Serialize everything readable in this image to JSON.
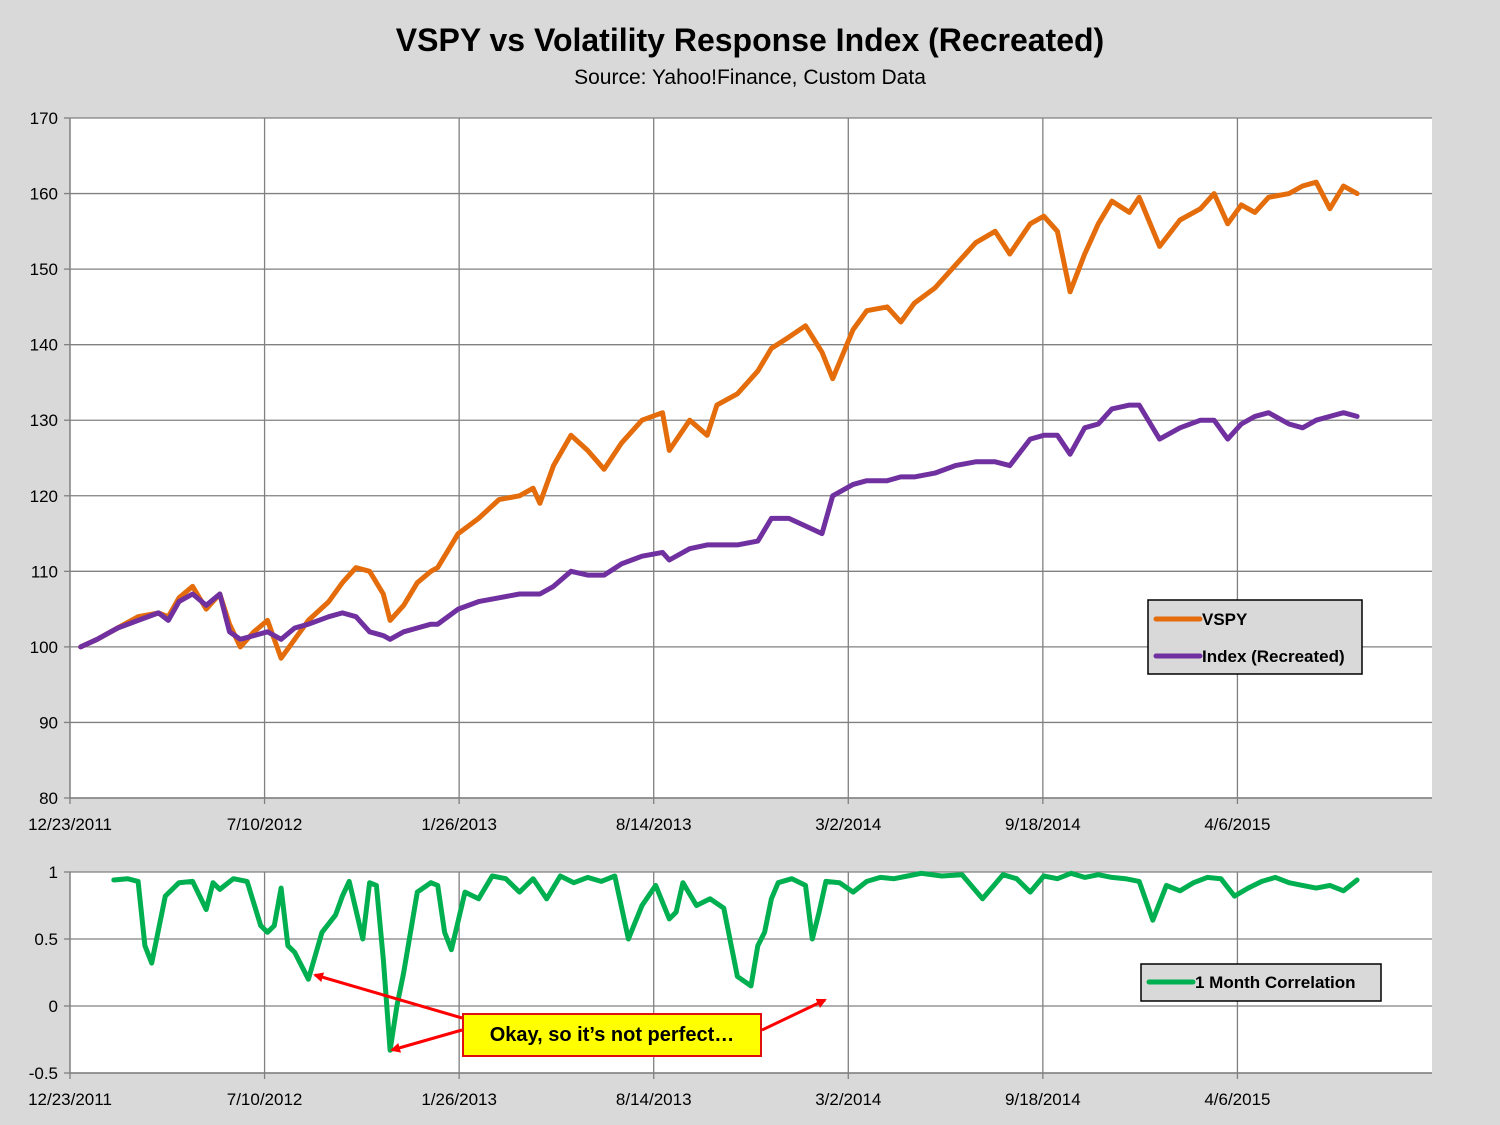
{
  "title": "VSPY vs Volatility Response Index (Recreated)",
  "subtitle": "Source: Yahoo!Finance, Custom Data",
  "colors": {
    "vspy": "#e46c0a",
    "index": "#7030a0",
    "correlation": "#00b050",
    "annotation_arrow": "#ff0000",
    "callout_fill": "#ffff00",
    "background": "#d9d9d9",
    "plot_background": "#ffffff",
    "grid": "#808080"
  },
  "annotation": {
    "text": "Okay, so it’s not perfect…"
  },
  "chart_data": [
    {
      "type": "line",
      "grid": true,
      "legend_placement": "right-middle",
      "x_ticks": [
        "12/23/2011",
        "7/10/2012",
        "1/26/2013",
        "8/14/2013",
        "3/2/2014",
        "9/18/2014",
        "4/6/2015"
      ],
      "xlim": [
        "12/23/2011",
        "10/23/2015"
      ],
      "ylim": [
        80,
        170
      ],
      "y_ticks": [
        80,
        90,
        100,
        110,
        120,
        130,
        140,
        150,
        160,
        170
      ],
      "series": [
        {
          "name": "VSPY",
          "color": "#e46c0a",
          "x": [
            "1/3/2012",
            "1/20/2012",
            "2/10/2012",
            "3/2/2012",
            "3/23/2012",
            "4/2/2012",
            "4/13/2012",
            "4/27/2012",
            "5/11/2012",
            "5/25/2012",
            "6/4/2012",
            "6/15/2012",
            "6/29/2012",
            "7/13/2012",
            "7/27/2012",
            "8/10/2012",
            "8/24/2012",
            "9/14/2012",
            "9/28/2012",
            "10/12/2012",
            "10/26/2012",
            "11/9/2012",
            "11/16/2012",
            "11/30/2012",
            "12/14/2012",
            "12/28/2012",
            "1/4/2013",
            "1/25/2013",
            "2/15/2013",
            "3/8/2013",
            "3/29/2013",
            "4/12/2013",
            "4/19/2013",
            "5/3/2013",
            "5/21/2013",
            "6/7/2013",
            "6/24/2013",
            "7/12/2013",
            "8/2/2013",
            "8/23/2013",
            "8/30/2013",
            "9/20/2013",
            "10/8/2013",
            "10/18/2013",
            "11/8/2013",
            "11/29/2013",
            "12/13/2013",
            "12/31/2013",
            "1/17/2014",
            "2/3/2014",
            "2/14/2014",
            "3/7/2014",
            "3/21/2014",
            "4/11/2014",
            "4/25/2014",
            "5/9/2014",
            "5/30/2014",
            "6/20/2014",
            "7/11/2014",
            "7/31/2014",
            "8/15/2014",
            "9/5/2014",
            "9/19/2014",
            "10/3/2014",
            "10/16/2014",
            "10/31/2014",
            "11/14/2014",
            "11/28/2014",
            "12/16/2014",
            "12/26/2014",
            "1/16/2015",
            "2/6/2015",
            "2/27/2015",
            "3/13/2015",
            "3/27/2015",
            "4/10/2015",
            "4/24/2015",
            "5/8/2015",
            "5/29/2015",
            "6/12/2015",
            "6/26/2015",
            "7/10/2015",
            "7/24/2015",
            "8/7/2015"
          ],
          "y": [
            100,
            101,
            102.5,
            104,
            104.5,
            104,
            106.5,
            108,
            105,
            107,
            103,
            100,
            102,
            103.5,
            98.5,
            101,
            103.5,
            106,
            108.5,
            110.5,
            110,
            107,
            103.5,
            105.5,
            108.5,
            110,
            110.5,
            115,
            117,
            119.5,
            120,
            121,
            119,
            124,
            128,
            126,
            123.5,
            127,
            130,
            131,
            126,
            130,
            128,
            132,
            133.5,
            136.5,
            139.5,
            141,
            142.5,
            139,
            135.5,
            142,
            144.5,
            145,
            143,
            145.5,
            147.5,
            150.5,
            153.5,
            155,
            152,
            156,
            157,
            155,
            147,
            152,
            156,
            159,
            157.5,
            159.5,
            153,
            156.5,
            158,
            160,
            156,
            158.5,
            157.5,
            159.5,
            160,
            161,
            161.5,
            158,
            161,
            160
          ]
        },
        {
          "name": "Index (Recreated)",
          "color": "#7030a0",
          "x": [
            "1/3/2012",
            "1/20/2012",
            "2/10/2012",
            "3/2/2012",
            "3/23/2012",
            "4/2/2012",
            "4/13/2012",
            "4/27/2012",
            "5/11/2012",
            "5/25/2012",
            "6/4/2012",
            "6/15/2012",
            "6/29/2012",
            "7/13/2012",
            "7/27/2012",
            "8/10/2012",
            "8/24/2012",
            "9/14/2012",
            "9/28/2012",
            "10/12/2012",
            "10/26/2012",
            "11/9/2012",
            "11/16/2012",
            "11/30/2012",
            "12/14/2012",
            "12/28/2012",
            "1/4/2013",
            "1/25/2013",
            "2/15/2013",
            "3/8/2013",
            "3/29/2013",
            "4/12/2013",
            "4/19/2013",
            "5/3/2013",
            "5/21/2013",
            "6/7/2013",
            "6/24/2013",
            "7/12/2013",
            "8/2/2013",
            "8/23/2013",
            "8/30/2013",
            "9/20/2013",
            "10/8/2013",
            "10/18/2013",
            "11/8/2013",
            "11/29/2013",
            "12/13/2013",
            "12/31/2013",
            "1/17/2014",
            "2/3/2014",
            "2/14/2014",
            "3/7/2014",
            "3/21/2014",
            "4/11/2014",
            "4/25/2014",
            "5/9/2014",
            "5/30/2014",
            "6/20/2014",
            "7/11/2014",
            "7/31/2014",
            "8/15/2014",
            "9/5/2014",
            "9/19/2014",
            "10/3/2014",
            "10/16/2014",
            "10/31/2014",
            "11/14/2014",
            "11/28/2014",
            "12/16/2014",
            "12/26/2014",
            "1/16/2015",
            "2/6/2015",
            "2/27/2015",
            "3/13/2015",
            "3/27/2015",
            "4/10/2015",
            "4/24/2015",
            "5/8/2015",
            "5/29/2015",
            "6/12/2015",
            "6/26/2015",
            "7/10/2015",
            "7/24/2015",
            "8/7/2015"
          ],
          "y": [
            100,
            101,
            102.5,
            103.5,
            104.5,
            103.5,
            106,
            107,
            105.5,
            107,
            102,
            101,
            101.5,
            102,
            101,
            102.5,
            103,
            104,
            104.5,
            104,
            102,
            101.5,
            101,
            102,
            102.5,
            103,
            103,
            105,
            106,
            106.5,
            107,
            107,
            107,
            108,
            110,
            109.5,
            109.5,
            111,
            112,
            112.5,
            111.5,
            113,
            113.5,
            113.5,
            113.5,
            114,
            117,
            117,
            116,
            115,
            120,
            121.5,
            122,
            122,
            122.5,
            122.5,
            123,
            124,
            124.5,
            124.5,
            124,
            127.5,
            128,
            128,
            125.5,
            129,
            129.5,
            131.5,
            132,
            132,
            127.5,
            129,
            130,
            130,
            127.5,
            129.5,
            130.5,
            131,
            129.5,
            129,
            130,
            130.5,
            131,
            130.5
          ]
        }
      ]
    },
    {
      "type": "line",
      "grid": true,
      "legend_placement": "right-middle",
      "x_ticks": [
        "12/23/2011",
        "7/10/2012",
        "1/26/2013",
        "8/14/2013",
        "3/2/2014",
        "9/18/2014",
        "4/6/2015"
      ],
      "xlim": [
        "12/23/2011",
        "10/23/2015"
      ],
      "ylim": [
        -0.5,
        1
      ],
      "y_ticks": [
        -0.5,
        0,
        0.5,
        1
      ],
      "series": [
        {
          "name": "1 Month Correlation",
          "color": "#00b050",
          "x": [
            "2/6/2012",
            "2/20/2012",
            "3/2/2012",
            "3/9/2012",
            "3/16/2012",
            "3/30/2012",
            "4/13/2012",
            "4/27/2012",
            "5/11/2012",
            "5/18/2012",
            "5/25/2012",
            "6/8/2012",
            "6/22/2012",
            "7/6/2012",
            "7/13/2012",
            "7/20/2012",
            "7/27/2012",
            "8/3/2012",
            "8/10/2012",
            "8/24/2012",
            "9/7/2012",
            "9/21/2012",
            "9/28/2012",
            "10/5/2012",
            "10/19/2012",
            "10/26/2012",
            "11/2/2012",
            "11/9/2012",
            "11/16/2012",
            "11/23/2012",
            "11/30/2012",
            "12/14/2012",
            "12/28/2012",
            "1/4/2013",
            "1/11/2013",
            "1/18/2013",
            "2/1/2013",
            "2/15/2013",
            "3/1/2013",
            "3/15/2013",
            "3/29/2013",
            "4/12/2013",
            "4/26/2013",
            "5/10/2013",
            "5/24/2013",
            "6/7/2013",
            "6/21/2013",
            "7/5/2013",
            "7/19/2013",
            "8/2/2013",
            "8/16/2013",
            "8/30/2013",
            "9/6/2013",
            "9/13/2013",
            "9/27/2013",
            "10/11/2013",
            "10/25/2013",
            "11/8/2013",
            "11/22/2013",
            "11/29/2013",
            "12/6/2013",
            "12/13/2013",
            "12/20/2013",
            "1/3/2014",
            "1/17/2014",
            "1/24/2014",
            "1/31/2014",
            "2/7/2014",
            "2/21/2014",
            "3/7/2014",
            "3/21/2014",
            "4/4/2014",
            "4/18/2014",
            "5/2/2014",
            "5/16/2014",
            "6/6/2014",
            "6/27/2014",
            "7/18/2014",
            "8/8/2014",
            "8/22/2014",
            "9/5/2014",
            "9/19/2014",
            "10/3/2014",
            "10/17/2014",
            "10/31/2014",
            "11/14/2014",
            "11/28/2014",
            "12/12/2014",
            "12/26/2014",
            "1/9/2015",
            "1/23/2015",
            "2/6/2015",
            "2/20/2015",
            "3/6/2015",
            "3/20/2015",
            "4/3/2015",
            "4/17/2015",
            "5/1/2015",
            "5/15/2015",
            "5/29/2015",
            "6/12/2015",
            "6/26/2015",
            "7/10/2015",
            "7/24/2015",
            "8/7/2015"
          ],
          "y": [
            0.94,
            0.95,
            0.93,
            0.45,
            0.32,
            0.82,
            0.92,
            0.93,
            0.72,
            0.92,
            0.87,
            0.95,
            0.93,
            0.6,
            0.55,
            0.6,
            0.88,
            0.45,
            0.4,
            0.2,
            0.55,
            0.68,
            0.82,
            0.93,
            0.5,
            0.92,
            0.9,
            0.35,
            -0.33,
            0.0,
            0.25,
            0.85,
            0.92,
            0.9,
            0.55,
            0.42,
            0.85,
            0.8,
            0.97,
            0.95,
            0.85,
            0.95,
            0.8,
            0.97,
            0.92,
            0.96,
            0.93,
            0.97,
            0.5,
            0.75,
            0.9,
            0.65,
            0.7,
            0.92,
            0.75,
            0.8,
            0.73,
            0.22,
            0.15,
            0.45,
            0.55,
            0.8,
            0.92,
            0.95,
            0.9,
            0.5,
            0.7,
            0.93,
            0.92,
            0.85,
            0.93,
            0.96,
            0.95,
            0.97,
            0.99,
            0.97,
            0.98,
            0.8,
            0.98,
            0.95,
            0.85,
            0.97,
            0.95,
            0.99,
            0.96,
            0.98,
            0.96,
            0.95,
            0.93,
            0.64,
            0.9,
            0.86,
            0.92,
            0.96,
            0.95,
            0.82,
            0.88,
            0.93,
            0.96,
            0.92,
            0.9,
            0.88,
            0.9,
            0.86,
            0.94
          ]
        }
      ]
    }
  ]
}
